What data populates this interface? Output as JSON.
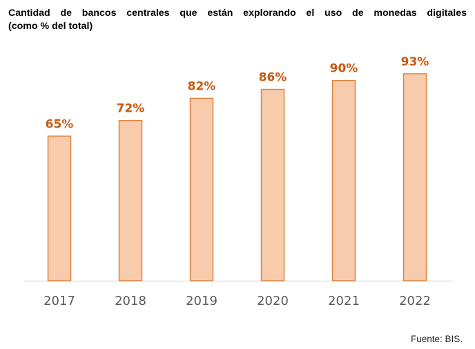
{
  "title_line1": "Cantidad de bancos centrales que están explorando el uso de monedas digitales",
  "title_line2": "(como % del total)",
  "source": "Fuente: BIS.",
  "colors": {
    "bar_fill": "#f8cbad",
    "bar_stroke": "#e0823d",
    "label": "#c55a11",
    "axis": "#d9d9d9",
    "tick": "#595959"
  },
  "chart_data": {
    "type": "bar",
    "title": "Cantidad de bancos centrales que están explorando el uso de monedas digitales (como % del total)",
    "xlabel": "",
    "ylabel": "",
    "categories": [
      "2017",
      "2018",
      "2019",
      "2020",
      "2021",
      "2022"
    ],
    "values": [
      65,
      72,
      82,
      86,
      90,
      93
    ],
    "data_labels": [
      "65%",
      "72%",
      "82%",
      "86%",
      "90%",
      "93%"
    ],
    "ylim": [
      0,
      100
    ],
    "grid": false,
    "legend": "none"
  }
}
